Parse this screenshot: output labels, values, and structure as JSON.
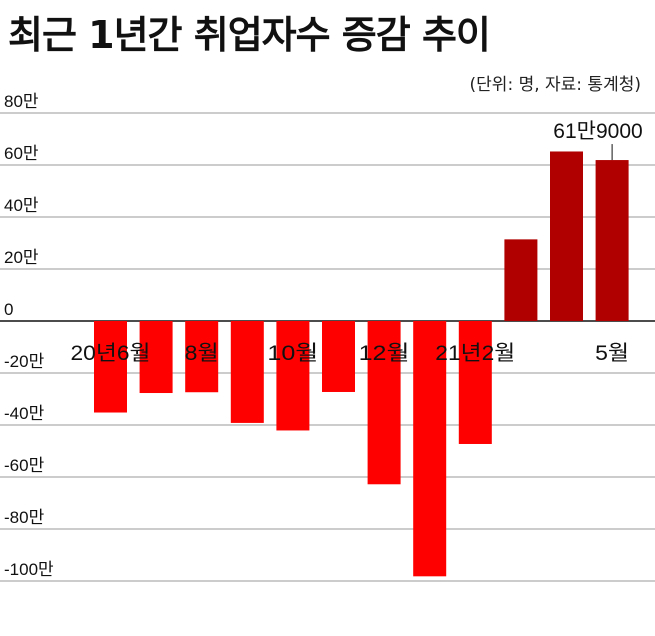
{
  "chart_data": {
    "type": "bar",
    "title": "최근 1년간 취업자수 증감 추이",
    "subtitle": "(단위: 명, 자료: 통계청)",
    "categories": [
      "2020-06",
      "2020-07",
      "2020-08",
      "2020-09",
      "2020-10",
      "2020-11",
      "2020-12",
      "2021-01",
      "2021-02",
      "2021-03",
      "2021-04",
      "2021-05"
    ],
    "x_tick_labels": [
      "20년6월",
      "",
      "8월",
      "",
      "10월",
      "",
      "12월",
      "",
      "21년2월",
      "",
      "",
      "5월"
    ],
    "series": [
      {
        "values": [
          -352000,
          -277000,
          -274000,
          -392000,
          -421000,
          -273000,
          -628000,
          -982000,
          -473000,
          314000,
          652000,
          619000
        ]
      }
    ],
    "y_tick_labels": [
      "80만",
      "60만",
      "40만",
      "20만",
      "0",
      "-20만",
      "-40만",
      "-60만",
      "-80만",
      "-100만"
    ],
    "annotation": {
      "text": "61만9000",
      "category": "2021-05"
    },
    "colors": {
      "positive": "#b00000",
      "negative": "#ff0000",
      "grid": "#9a9a9a",
      "axis": "#111111"
    },
    "grid": true
  }
}
